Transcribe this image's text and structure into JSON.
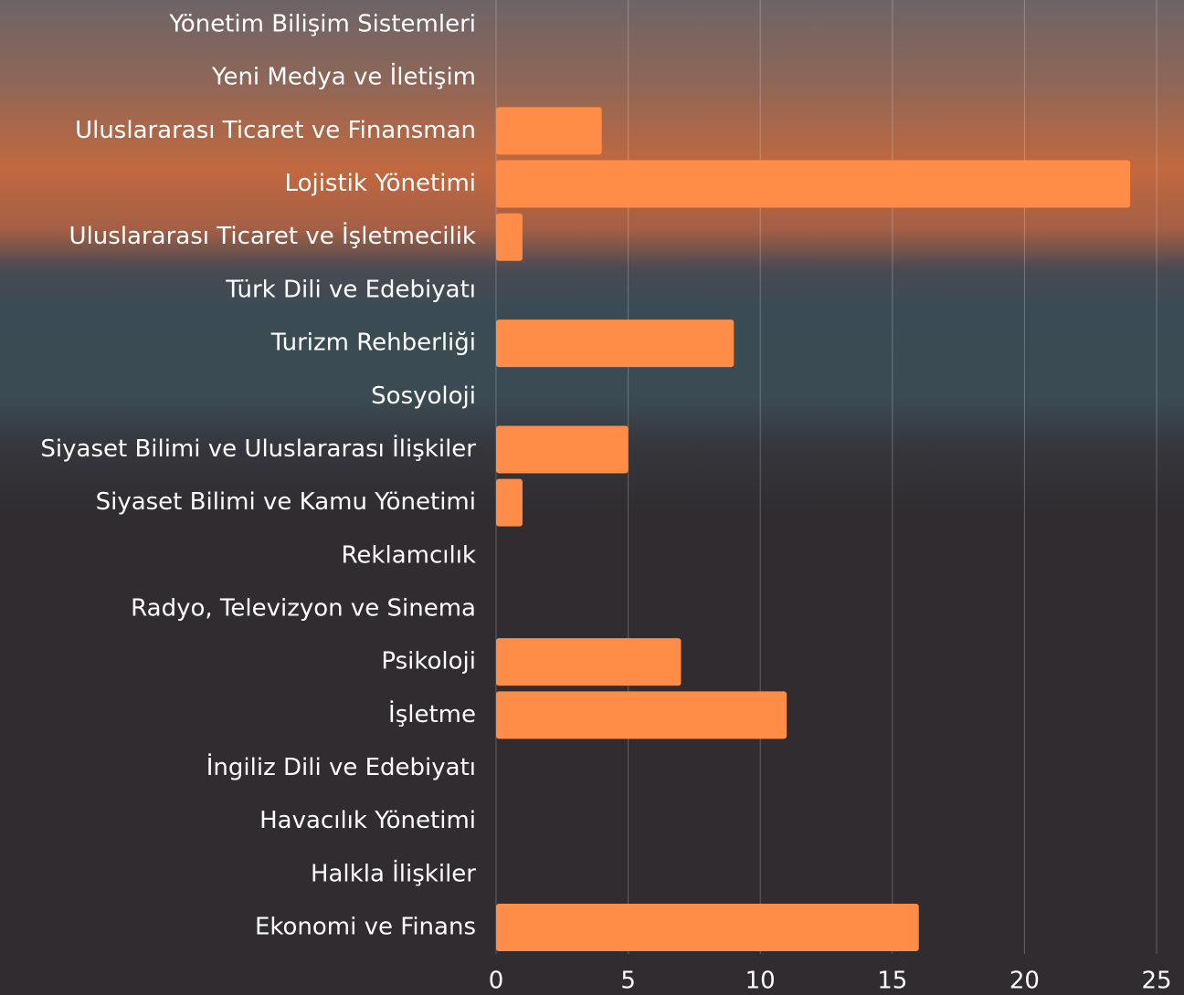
{
  "chart_data": {
    "type": "bar",
    "orientation": "horizontal",
    "categories": [
      "Yönetim Bilişim Sistemleri",
      "Yeni Medya ve İletişim",
      "Uluslararası Ticaret ve Finansman",
      "Lojistik Yönetimi",
      "Uluslararası Ticaret ve İşletmecilik",
      "Türk Dili ve Edebiyatı",
      "Turizm Rehberliği",
      "Sosyoloji",
      "Siyaset Bilimi ve Uluslararası İlişkiler",
      "Siyaset Bilimi ve Kamu Yönetimi",
      "Reklamcılık",
      "Radyo, Televizyon ve Sinema",
      "Psikoloji",
      "İşletme",
      "İngiliz Dili ve Edebiyatı",
      "Havacılık Yönetimi",
      "Halkla İlişkiler",
      "Ekonomi ve Finans"
    ],
    "values": [
      0,
      0,
      4,
      24,
      1,
      0,
      9,
      0,
      5,
      1,
      0,
      0,
      7,
      11,
      0,
      0,
      0,
      16
    ],
    "color": "#ff8c47",
    "xlim": [
      0,
      25
    ],
    "xticks": [
      0,
      5,
      10,
      15,
      20,
      25
    ],
    "grid": true
  }
}
